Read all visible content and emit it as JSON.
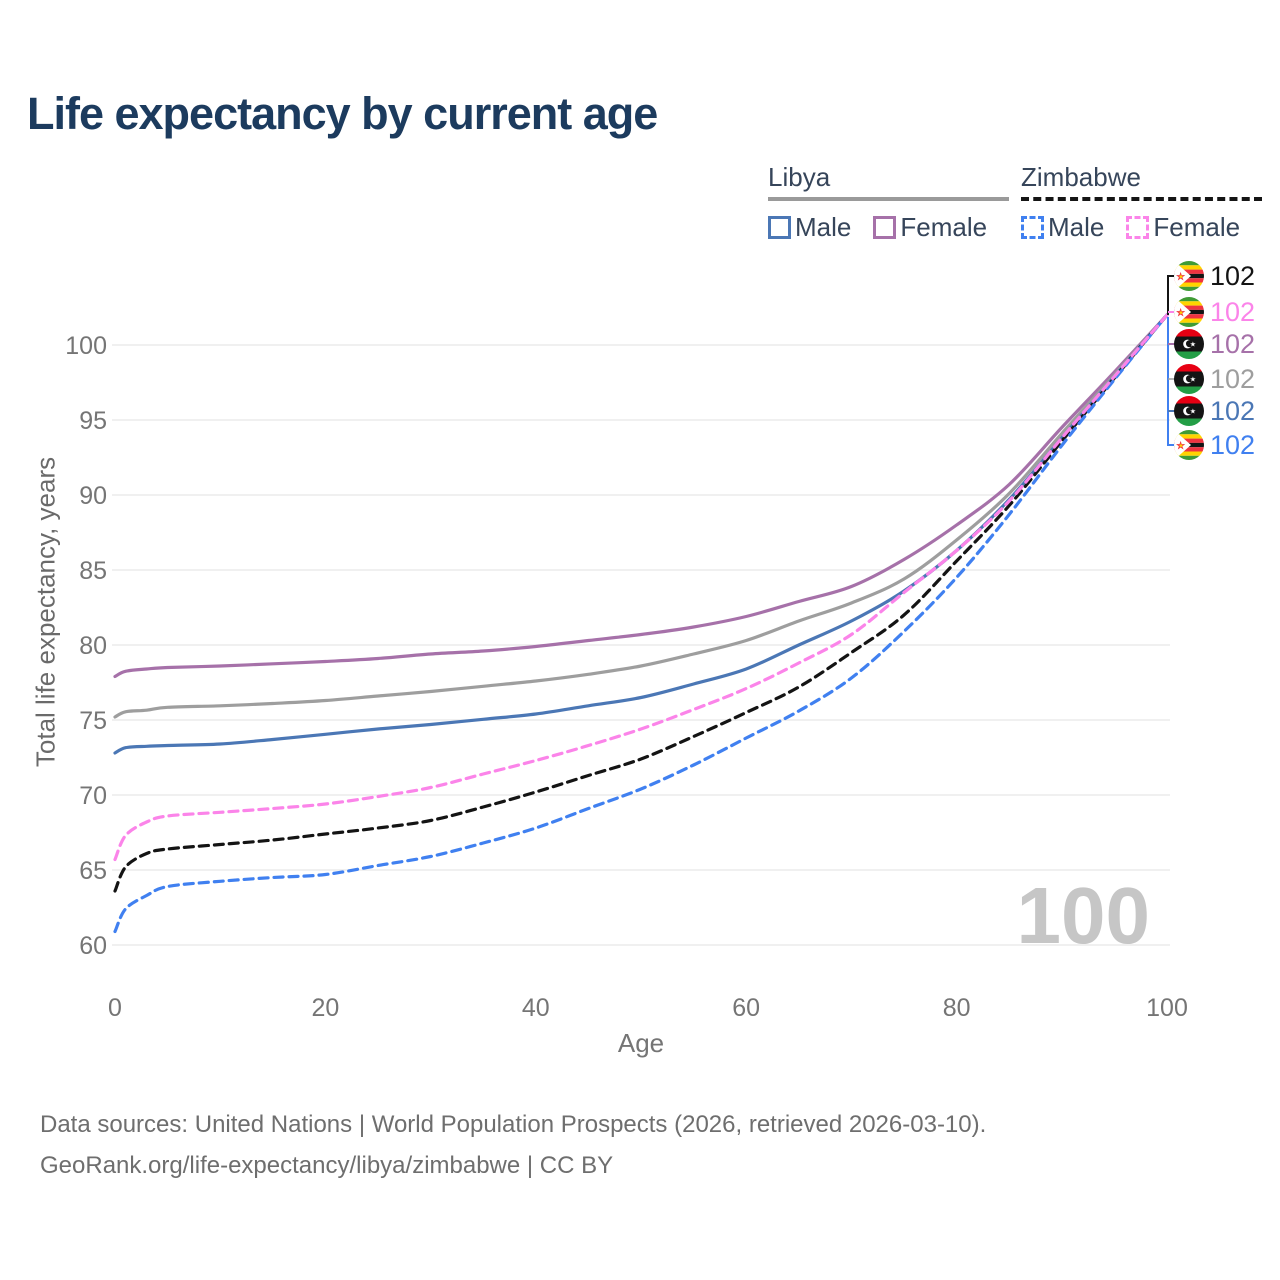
{
  "title": "Life expectancy by current age",
  "legend": {
    "groups": [
      {
        "name": "Libya",
        "line_style": "solid",
        "line_color": "#9a9a9a",
        "items": [
          {
            "label": "Male",
            "color": "#4b77b5"
          },
          {
            "label": "Female",
            "color": "#a671a9"
          }
        ]
      },
      {
        "name": "Zimbabwe",
        "line_style": "dashed",
        "line_color": "#151515",
        "items": [
          {
            "label": "Male",
            "color": "#4080f0"
          },
          {
            "label": "Female",
            "color": "#fb84e9"
          }
        ]
      }
    ]
  },
  "watermark_age": "100",
  "end_labels": [
    {
      "series": "Zimbabwe Both sexes",
      "country": "zimbabwe",
      "value": "102",
      "color": "#141414"
    },
    {
      "series": "Zimbabwe Female",
      "country": "zimbabwe",
      "value": "102",
      "color": "#fb84e9"
    },
    {
      "series": "Libya Female",
      "country": "libya",
      "value": "102",
      "color": "#a671a9"
    },
    {
      "series": "Libya Both sexes",
      "country": "libya",
      "value": "102",
      "color": "#9e9e9e"
    },
    {
      "series": "Libya Male",
      "country": "libya",
      "value": "102",
      "color": "#4b77b5"
    },
    {
      "series": "Zimbabwe Male",
      "country": "zimbabwe",
      "value": "102",
      "color": "#4080f0"
    }
  ],
  "footer": {
    "line1": "Data sources: United Nations | World Population Prospects (2026, retrieved 2026-03-10).",
    "line2": "GeoRank.org/life-expectancy/libya/zimbabwe | CC BY"
  },
  "chart_data": {
    "type": "line",
    "title": "Life expectancy by current age",
    "xlabel": "Age",
    "ylabel": "Total life expectancy, years",
    "xlim": [
      0,
      100
    ],
    "ylim": [
      60,
      103
    ],
    "x_ticks": [
      0,
      20,
      40,
      60,
      80,
      100
    ],
    "y_ticks": [
      60,
      65,
      70,
      75,
      80,
      85,
      90,
      95,
      100
    ],
    "grid": true,
    "legend_position": "top-right",
    "x": [
      0,
      1,
      3,
      5,
      10,
      15,
      20,
      25,
      30,
      35,
      40,
      45,
      50,
      55,
      60,
      65,
      70,
      75,
      80,
      85,
      90,
      95,
      100
    ],
    "series": [
      {
        "name": "Libya Female",
        "country": "Libya",
        "sex": "Female",
        "color": "#a671a9",
        "dash": false,
        "values": [
          77.9,
          78.25,
          78.4,
          78.5,
          78.6,
          78.75,
          78.9,
          79.1,
          79.4,
          79.6,
          79.9,
          80.3,
          80.7,
          81.2,
          81.9,
          82.9,
          83.9,
          85.7,
          88.0,
          90.7,
          94.5,
          98.2,
          102
        ]
      },
      {
        "name": "Libya Both sexes",
        "country": "Libya",
        "sex": "Both",
        "color": "#9e9e9e",
        "dash": false,
        "values": [
          75.2,
          75.55,
          75.65,
          75.85,
          75.95,
          76.1,
          76.3,
          76.6,
          76.9,
          77.25,
          77.6,
          78.05,
          78.6,
          79.4,
          80.3,
          81.6,
          82.8,
          84.4,
          87.0,
          90.1,
          94.1,
          98.0,
          102
        ]
      },
      {
        "name": "Libya Male",
        "country": "Libya",
        "sex": "Male",
        "color": "#4b77b5",
        "dash": false,
        "values": [
          72.8,
          73.15,
          73.25,
          73.3,
          73.4,
          73.7,
          74.05,
          74.4,
          74.7,
          75.05,
          75.4,
          75.95,
          76.5,
          77.4,
          78.4,
          80.0,
          81.6,
          83.6,
          86.3,
          89.7,
          93.8,
          97.9,
          102
        ]
      },
      {
        "name": "Zimbabwe Both sexes",
        "country": "Zimbabwe",
        "sex": "Both",
        "color": "#141414",
        "dash": true,
        "values": [
          63.6,
          65.2,
          66.1,
          66.4,
          66.7,
          67.0,
          67.4,
          67.8,
          68.3,
          69.2,
          70.2,
          71.3,
          72.4,
          73.9,
          75.5,
          77.2,
          79.5,
          82.0,
          85.6,
          89.3,
          93.6,
          97.8,
          102
        ]
      },
      {
        "name": "Zimbabwe Male",
        "country": "Zimbabwe",
        "sex": "Male",
        "color": "#4080f0",
        "dash": true,
        "values": [
          60.9,
          62.4,
          63.3,
          63.9,
          64.25,
          64.5,
          64.7,
          65.3,
          65.9,
          66.8,
          67.8,
          69.1,
          70.4,
          72.0,
          73.8,
          75.6,
          77.8,
          80.9,
          84.5,
          88.7,
          93.3,
          97.7,
          102
        ]
      },
      {
        "name": "Zimbabwe Female",
        "country": "Zimbabwe",
        "sex": "Female",
        "color": "#fb84e9",
        "dash": true,
        "values": [
          65.7,
          67.3,
          68.2,
          68.6,
          68.85,
          69.1,
          69.4,
          69.9,
          70.5,
          71.4,
          72.3,
          73.3,
          74.4,
          75.7,
          77.1,
          78.8,
          80.7,
          83.5,
          86.3,
          89.6,
          93.8,
          97.9,
          102
        ]
      }
    ],
    "end_value_labels": [
      102,
      102,
      102,
      102,
      102,
      102
    ]
  }
}
